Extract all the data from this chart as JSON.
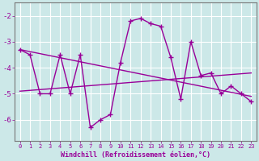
{
  "xlabel": "Windchill (Refroidissement éolien,°C)",
  "background_color": "#cce8e8",
  "grid_color": "#ffffff",
  "line_color": "#990099",
  "hours": [
    0,
    1,
    2,
    3,
    4,
    5,
    6,
    7,
    8,
    9,
    10,
    11,
    12,
    13,
    14,
    15,
    16,
    17,
    18,
    19,
    20,
    21,
    22,
    23
  ],
  "windchill": [
    -3.3,
    -3.5,
    -5.0,
    -5.0,
    -3.5,
    -5.0,
    -3.5,
    -6.3,
    -6.0,
    -5.8,
    -3.8,
    -2.2,
    -2.1,
    -2.3,
    -2.4,
    -3.6,
    -5.2,
    -3.0,
    -4.3,
    -4.2,
    -5.0,
    -4.7,
    -5.0,
    -5.3
  ],
  "trend1_x": [
    0,
    23
  ],
  "trend1_y": [
    -3.3,
    -5.1
  ],
  "trend2_x": [
    0,
    23
  ],
  "trend2_y": [
    -4.9,
    -4.2
  ],
  "ylim": [
    -6.8,
    -1.5
  ],
  "yticks": [
    -6,
    -5,
    -4,
    -3,
    -2
  ],
  "xlim": [
    -0.5,
    23.5
  ],
  "line_width": 1.0,
  "marker_size": 4
}
